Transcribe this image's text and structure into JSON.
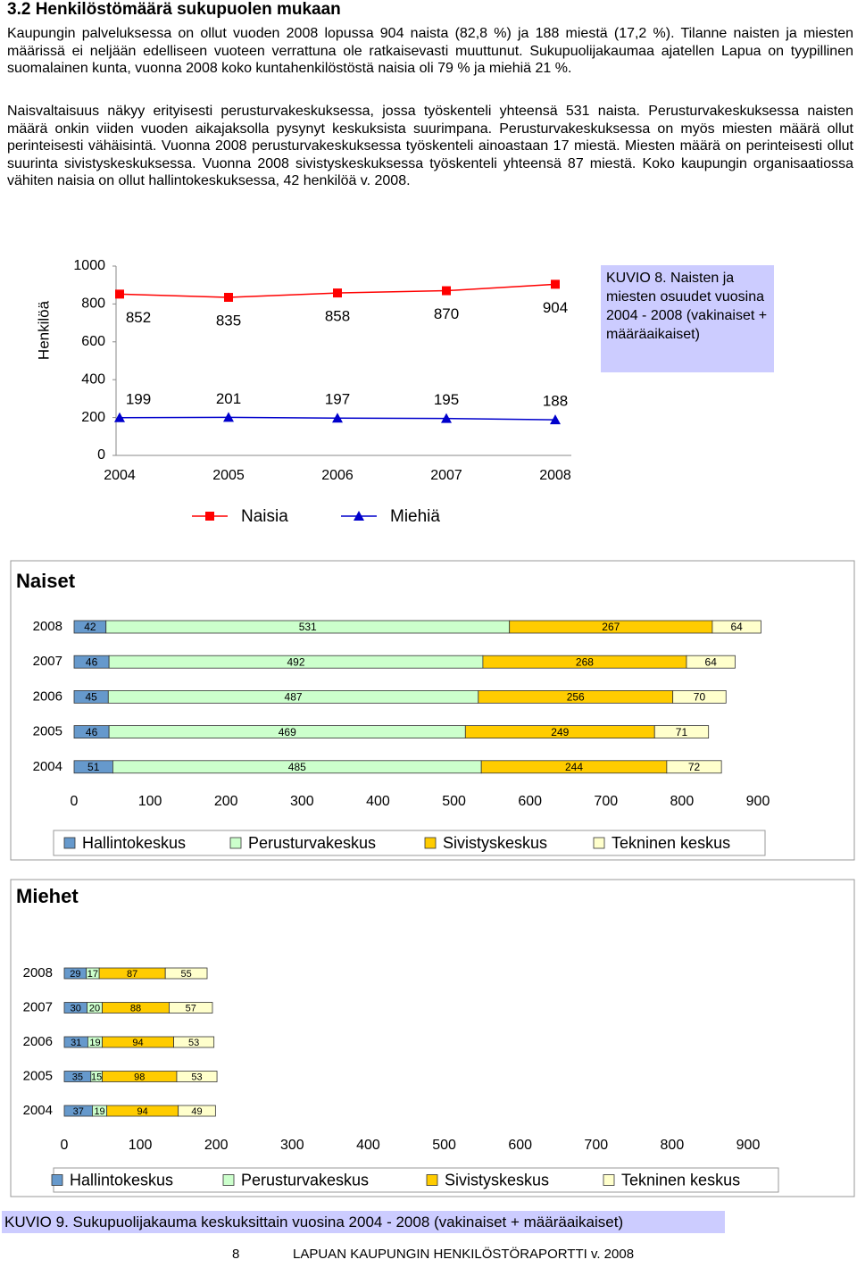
{
  "heading": "3.2 Henkilöstömäärä sukupuolen mukaan",
  "paragraphs": [
    "Kaupungin palveluksessa on ollut vuoden 2008 lopussa 904 naista (82,8 %) ja 188 miestä (17,2 %). Tilanne naisten ja miesten määrissä ei neljään edelliseen vuoteen verrattuna ole ratkaisevasti muuttunut. Sukupuolijakaumaa ajatellen Lapua on tyypillinen suomalainen kunta, vuonna 2008 koko kuntahenkilöstöstä naisia oli 79 % ja miehiä 21 %.",
    "Naisvaltaisuus näkyy erityisesti perusturvakeskuksessa, jossa työskenteli yhteensä 531 naista. Perusturvakeskuksessa naisten määrä onkin viiden vuoden aikajaksolla pysynyt keskuksista suurimpana. Perusturvakeskuksessa on myös miesten määrä ollut perinteisesti vähäisintä. Vuonna 2008 perusturvakeskuksessa työskenteli ainoastaan 17 miestä. Miesten määrä on perinteisesti ollut suurinta sivistyskeskuksessa. Vuonna 2008 sivistyskeskuksessa työskenteli yhteensä 87 miestä. Koko kaupungin organisaatiossa vähiten naisia on ollut hallintokeskuksessa, 42 henkilöä v. 2008."
  ],
  "chart_data": [
    {
      "type": "line",
      "y_label": "Henkilöä",
      "categories": [
        "2004",
        "2005",
        "2006",
        "2007",
        "2008"
      ],
      "series": [
        {
          "name": "Naisia",
          "color": "#ff0000",
          "marker": "square",
          "values": [
            852,
            835,
            858,
            870,
            904
          ]
        },
        {
          "name": "Miehiä",
          "color": "#0000cc",
          "marker": "triangle",
          "values": [
            199,
            201,
            197,
            195,
            188
          ]
        }
      ],
      "ylim": [
        0,
        1000
      ],
      "yticks": [
        0,
        200,
        400,
        600,
        800,
        1000
      ],
      "grid": false,
      "legend": "bottom",
      "annotation": "KUVIO 8. Naisten ja miesten osuudet vuosina 2004 - 2008 (vakinaiset + määräaikaiset)"
    },
    {
      "type": "bar",
      "orientation": "horizontal",
      "stacked": true,
      "title": "Naiset",
      "categories": [
        "2008",
        "2007",
        "2006",
        "2005",
        "2004"
      ],
      "series": [
        {
          "name": "Hallintokeskus",
          "color": "#6699cc",
          "values": [
            42,
            46,
            45,
            46,
            51
          ]
        },
        {
          "name": "Perusturvakeskus",
          "color": "#ccffcc",
          "values": [
            531,
            492,
            487,
            469,
            485
          ]
        },
        {
          "name": "Sivistyskeskus",
          "color": "#ffcc00",
          "values": [
            267,
            268,
            256,
            249,
            244
          ]
        },
        {
          "name": "Tekninen keskus",
          "color": "#ffffcc",
          "values": [
            64,
            64,
            70,
            71,
            72
          ]
        }
      ],
      "xlim": [
        0,
        900
      ],
      "xticks": [
        0,
        100,
        200,
        300,
        400,
        500,
        600,
        700,
        800,
        900
      ],
      "grid": false,
      "legend": "bottom"
    },
    {
      "type": "bar",
      "orientation": "horizontal",
      "stacked": true,
      "title": "Miehet",
      "categories": [
        "2008",
        "2007",
        "2006",
        "2005",
        "2004"
      ],
      "series": [
        {
          "name": "Hallintokeskus",
          "color": "#6699cc",
          "values": [
            29,
            30,
            31,
            35,
            37
          ]
        },
        {
          "name": "Perusturvakeskus",
          "color": "#ccffcc",
          "values": [
            17,
            20,
            19,
            15,
            19
          ]
        },
        {
          "name": "Sivistyskeskus",
          "color": "#ffcc00",
          "values": [
            87,
            88,
            94,
            98,
            94
          ]
        },
        {
          "name": "Tekninen keskus",
          "color": "#ffffcc",
          "values": [
            55,
            57,
            53,
            53,
            49
          ]
        }
      ],
      "xlim": [
        0,
        900
      ],
      "xticks": [
        0,
        100,
        200,
        300,
        400,
        500,
        600,
        700,
        800,
        900
      ],
      "grid": false,
      "legend": "bottom"
    }
  ],
  "caption": "KUVIO 9. Sukupuolijakauma keskuksittain vuosina 2004 - 2008 (vakinaiset + määräaikaiset)",
  "footer": {
    "page": "8",
    "text": "LAPUAN KAUPUNGIN HENKILÖSTÖRAPORTTI v. 2008"
  }
}
